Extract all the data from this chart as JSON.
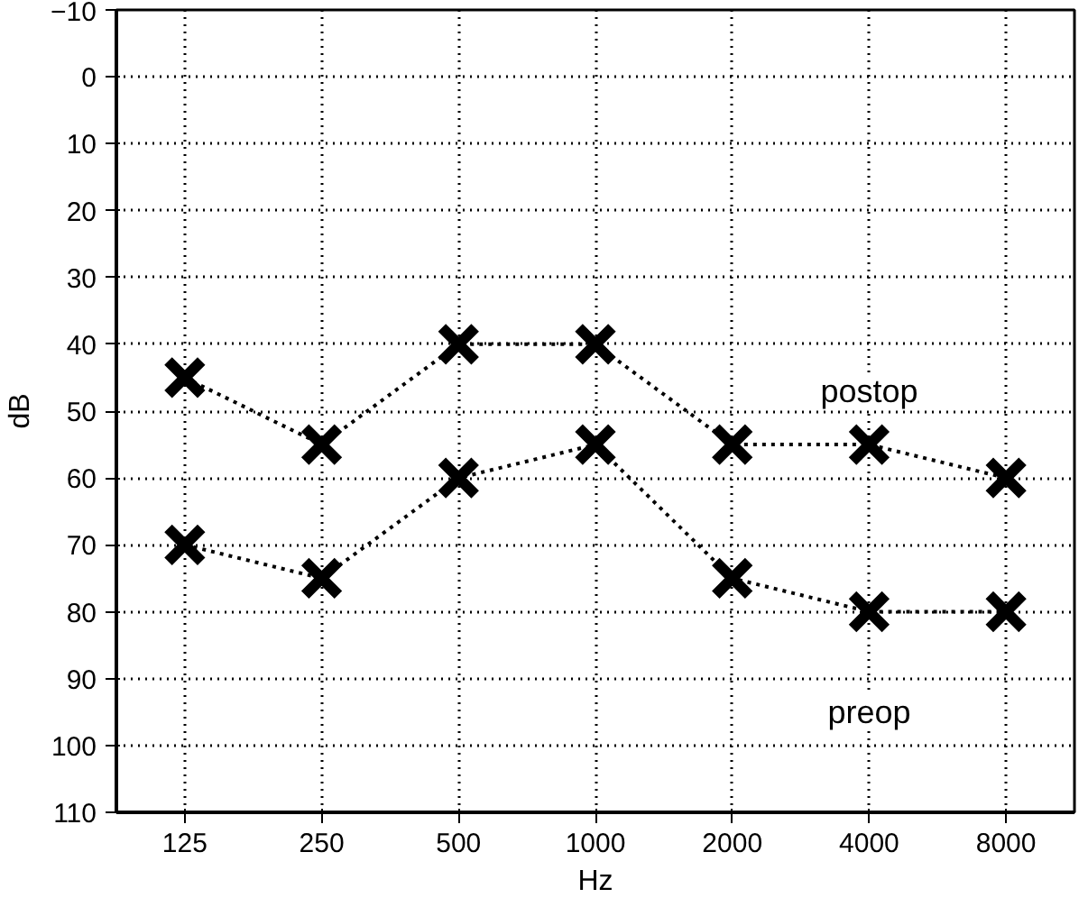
{
  "chart_data": {
    "type": "line",
    "xlabel": "Hz",
    "ylabel": "dB",
    "categories": [
      "125",
      "250",
      "500",
      "1000",
      "2000",
      "4000",
      "8000"
    ],
    "series": [
      {
        "name": "postop",
        "color": "#000000",
        "values": [
          45,
          55,
          40,
          40,
          55,
          55,
          60
        ]
      },
      {
        "name": "preop",
        "color": "#000000",
        "values": [
          70,
          75,
          60,
          55,
          75,
          80,
          80
        ]
      }
    ],
    "ylim": [
      110,
      -10
    ],
    "yticks": [
      -10,
      0,
      10,
      20,
      30,
      40,
      50,
      60,
      70,
      80,
      90,
      100,
      110
    ],
    "grid": true,
    "marker": "cross",
    "line_style": "dotted"
  }
}
